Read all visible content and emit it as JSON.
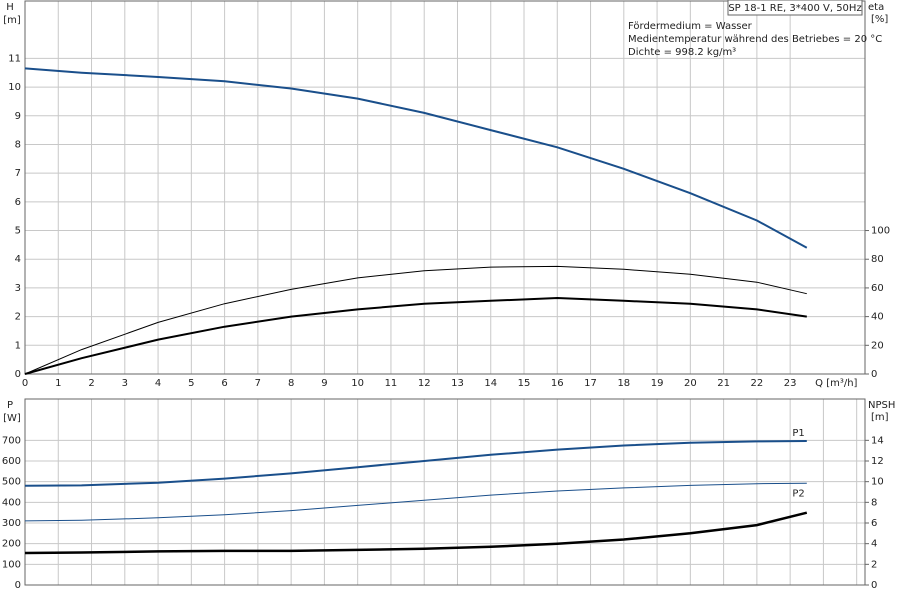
{
  "chart_data": [
    {
      "type": "line",
      "title": "SP 18-1 RE, 3*400 V, 50Hz",
      "annotations": [
        "Fördermedium = Wasser",
        "Medientemperatur während des Betriebes = 20 °C",
        "Dichte = 998.2 kg/m³"
      ],
      "y_label": "H",
      "y_unit": "[m]",
      "y2_label": "eta",
      "y2_unit": "[%]",
      "x_label": "Q [m³/h]",
      "x": [
        0,
        1.7,
        4,
        6,
        8,
        10,
        12,
        14,
        16,
        18,
        20,
        22,
        23.5
      ],
      "xlim": [
        0,
        25.25
      ],
      "xticks": [
        0,
        1,
        2,
        3,
        4,
        5,
        6,
        7,
        8,
        9,
        10,
        11,
        12,
        13,
        14,
        15,
        16,
        17,
        18,
        19,
        20,
        21,
        22,
        23
      ],
      "xtick_labels": true,
      "ylim": [
        0,
        13
      ],
      "yticks": [
        0,
        1,
        2,
        3,
        4,
        5,
        6,
        7,
        8,
        9,
        10,
        11
      ],
      "y2lim": [
        0,
        260
      ],
      "y2ticks": [
        0,
        20,
        40,
        60,
        80,
        100
      ],
      "grid": true,
      "series": [
        {
          "color": "#1a4f8b",
          "line_width": 2,
          "values": [
            10.65,
            10.5,
            10.35,
            10.2,
            9.95,
            9.6,
            9.1,
            8.5,
            7.9,
            7.15,
            6.3,
            5.35,
            4.4
          ]
        },
        {
          "color": "#000000",
          "line_width": 1,
          "axis": "y2",
          "values": [
            0,
            17,
            36,
            49,
            59,
            67,
            72,
            74.5,
            75,
            73,
            69.5,
            64,
            56
          ]
        },
        {
          "color": "#000000",
          "line_width": 2,
          "axis": "y2",
          "values": [
            0,
            11,
            24,
            33,
            40,
            45,
            49,
            51,
            53,
            51,
            49,
            45,
            40
          ]
        }
      ]
    },
    {
      "type": "line",
      "y_label": "P",
      "y_unit": "[W]",
      "y2_label": "NPSH",
      "y2_unit": "[m]",
      "x": [
        0,
        1.7,
        4,
        6,
        8,
        10,
        12,
        14,
        16,
        18,
        20,
        22,
        23.5
      ],
      "xlim": [
        0,
        25.25
      ],
      "xticks": [
        0,
        1,
        2,
        3,
        4,
        5,
        6,
        7,
        8,
        9,
        10,
        11,
        12,
        13,
        14,
        15,
        16,
        17,
        18,
        19,
        20,
        21,
        22,
        23,
        24,
        25
      ],
      "xtick_labels": false,
      "ylim": [
        0,
        900
      ],
      "yticks": [
        0,
        100,
        200,
        300,
        400,
        500,
        600,
        700
      ],
      "y2lim": [
        0,
        18
      ],
      "y2ticks": [
        0,
        2,
        4,
        6,
        8,
        10,
        12,
        14
      ],
      "grid": true,
      "series": [
        {
          "name": "P1",
          "color": "#1a4f8b",
          "line_width": 2,
          "values": [
            480,
            482,
            495,
            515,
            540,
            570,
            600,
            630,
            655,
            675,
            688,
            695,
            697
          ]
        },
        {
          "name": "P2",
          "color": "#1a4f8b",
          "line_width": 1,
          "values": [
            310,
            313,
            325,
            340,
            360,
            385,
            410,
            435,
            455,
            470,
            482,
            490,
            492
          ]
        },
        {
          "color": "#000000",
          "line_width": 2.5,
          "axis": "y2",
          "values": [
            3.1,
            3.15,
            3.25,
            3.3,
            3.3,
            3.4,
            3.5,
            3.7,
            4.0,
            4.4,
            5.0,
            5.8,
            7.0
          ]
        }
      ]
    }
  ]
}
